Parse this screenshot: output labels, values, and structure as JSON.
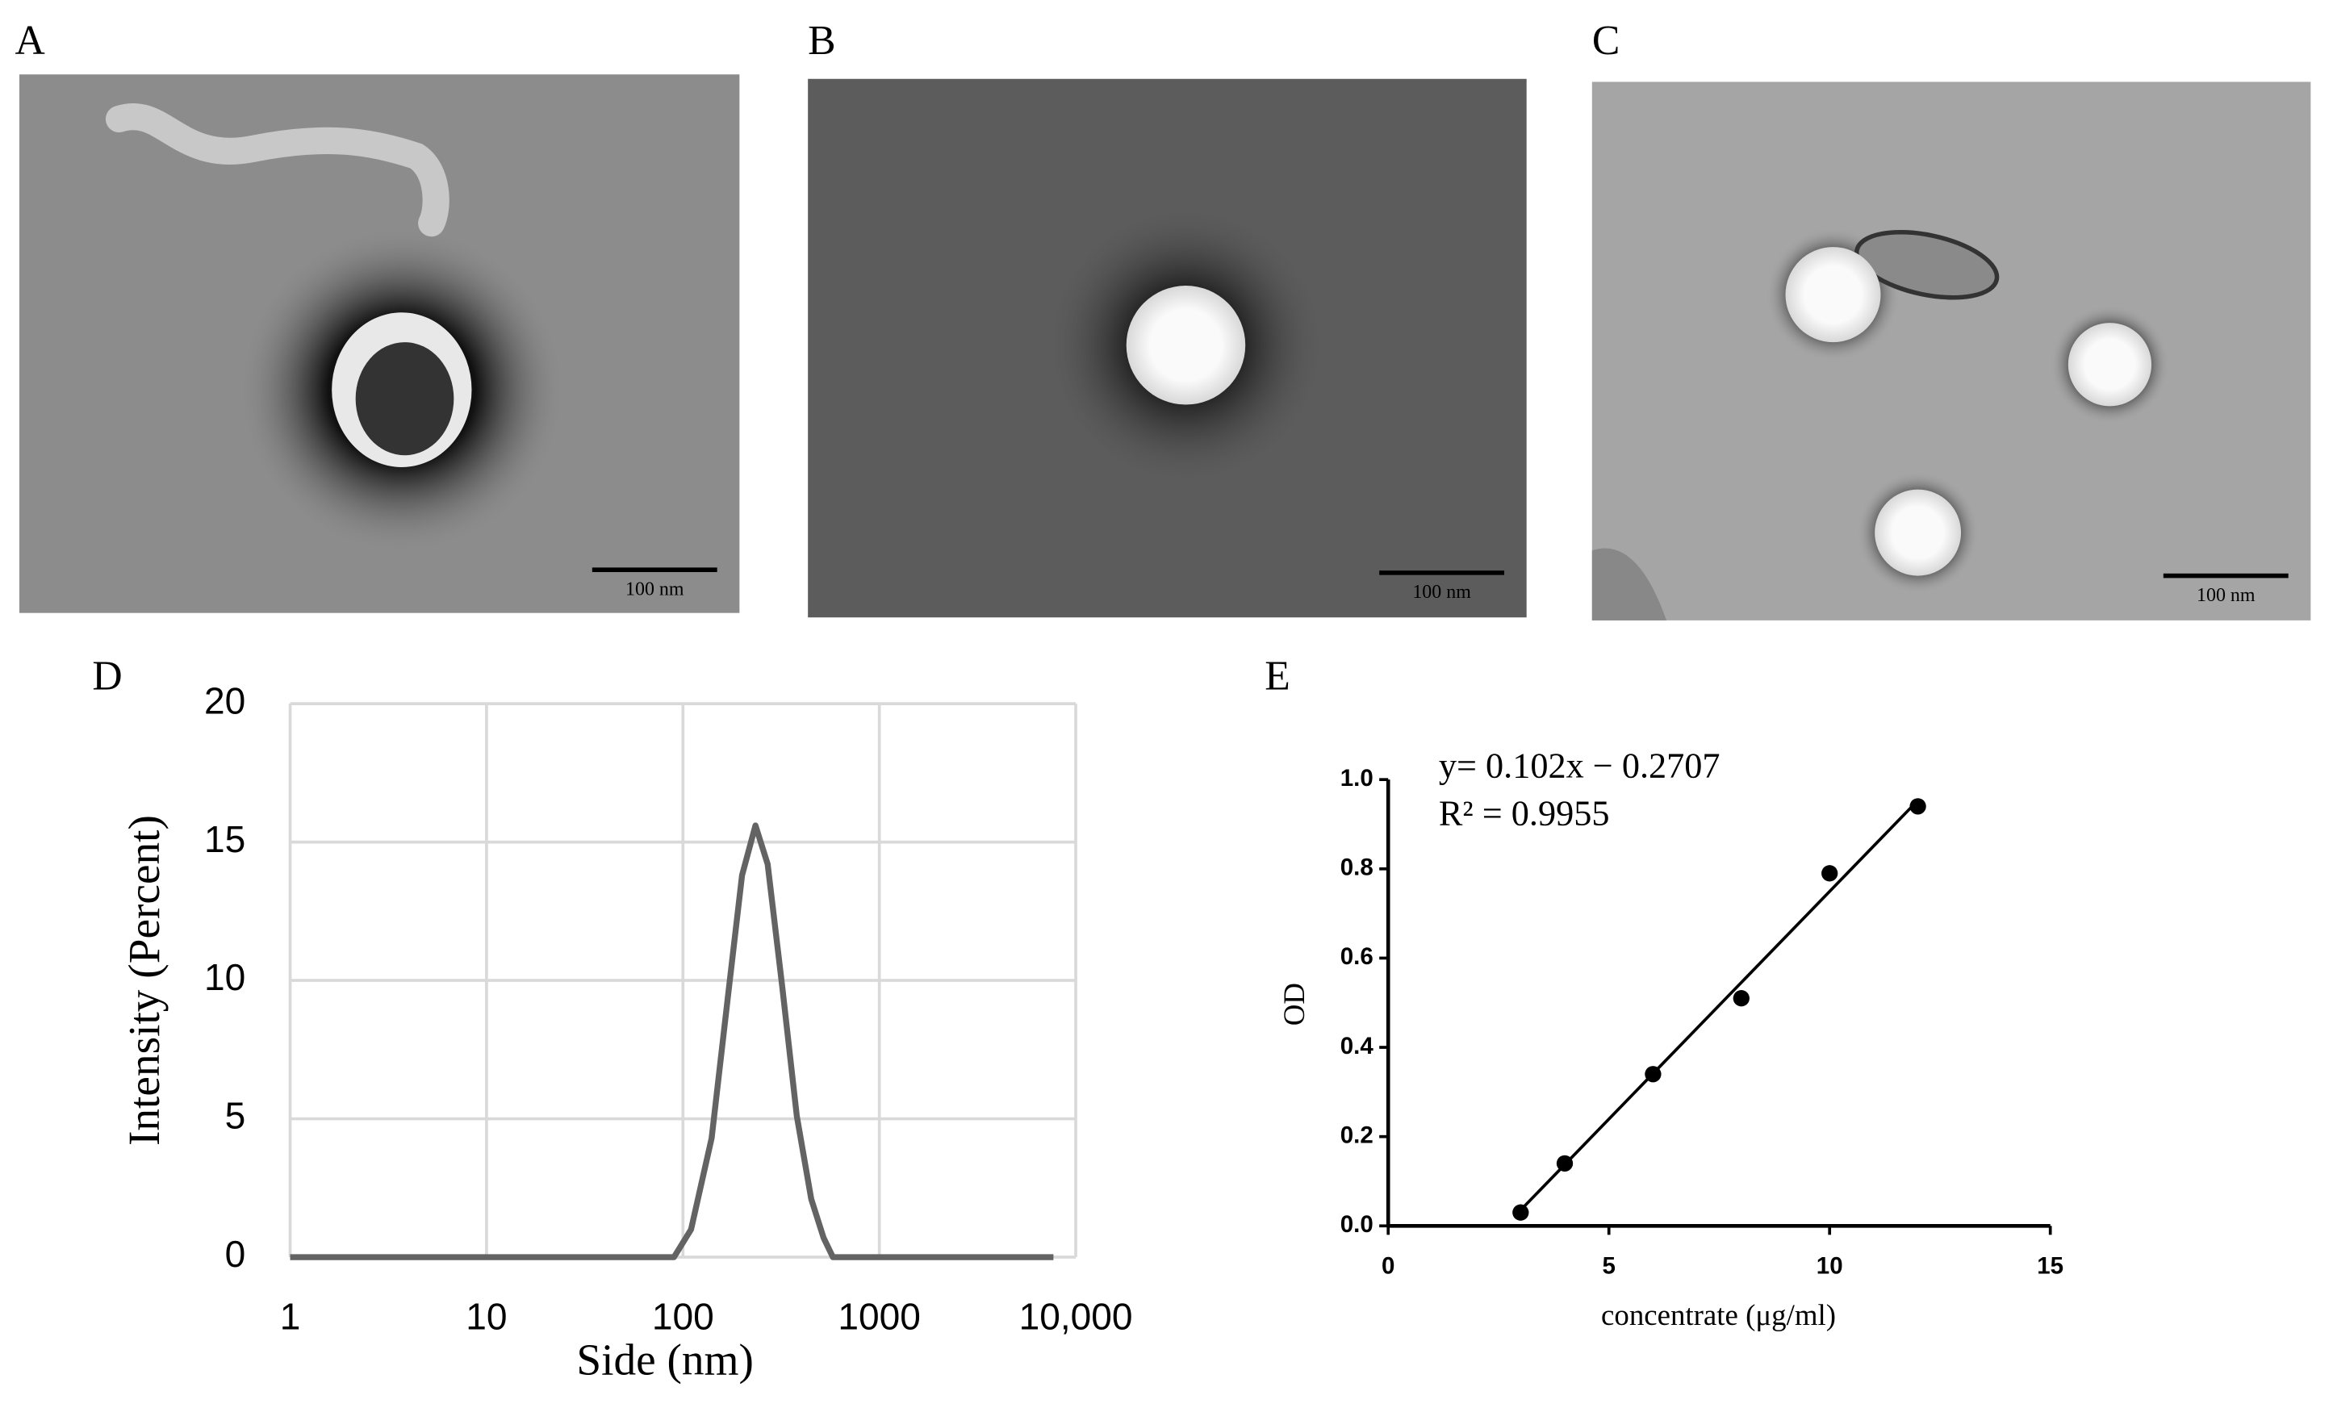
{
  "panels": [
    {
      "label": "A",
      "scale_bar": "100 nm"
    },
    {
      "label": "B",
      "scale_bar": "100 nm"
    },
    {
      "label": "C",
      "scale_bar": "100 nm"
    }
  ],
  "chart_data": [
    {
      "type": "line",
      "panel_label": "D",
      "xlabel": "Side (nm)",
      "ylabel": "Intensity (Percent)",
      "x": [
        1,
        90,
        110,
        140,
        170,
        200,
        234,
        270,
        320,
        380,
        450,
        520,
        580,
        7700
      ],
      "values": [
        0,
        0,
        1.0,
        4.3,
        9.5,
        13.8,
        15.6,
        14.2,
        9.8,
        5.1,
        2.1,
        0.7,
        0,
        0
      ],
      "color": "#636363",
      "xscale": "log",
      "xlim": [
        1,
        10000
      ],
      "xticks": [
        1,
        10,
        100,
        1000,
        {
          "value": 10000,
          "label": "10,000"
        }
      ],
      "ylim": [
        0,
        20
      ],
      "yticks": [
        0,
        5,
        10,
        15,
        20
      ],
      "grid": true
    },
    {
      "type": "scatter",
      "panel_label": "E",
      "xlabel": "concentrate (μg/ml)",
      "ylabel": "OD",
      "annotations": [
        "y= 0.102x −   0.2707",
        "R² = 0.9955"
      ],
      "fit": {
        "slope": 0.102,
        "intercept": -0.2707
      },
      "x": [
        3,
        4,
        6,
        8,
        10,
        12
      ],
      "values": [
        0.03,
        0.14,
        0.34,
        0.51,
        0.79,
        0.94
      ],
      "color": "#000000",
      "xlim": [
        0,
        15
      ],
      "xticks": [
        0,
        5,
        10,
        15
      ],
      "ylim": [
        0,
        1.0
      ],
      "yticks": [
        {
          "value": 0,
          "label": "0.0"
        },
        0.2,
        0.4,
        0.6,
        0.8,
        {
          "value": 1.0,
          "label": "1.0"
        }
      ],
      "grid": false
    }
  ]
}
